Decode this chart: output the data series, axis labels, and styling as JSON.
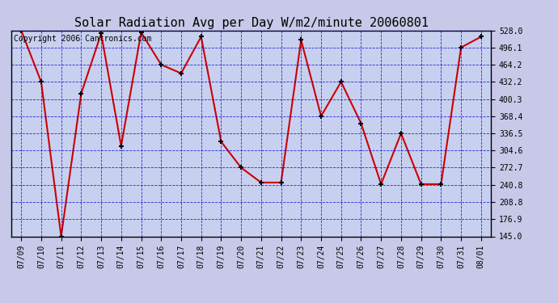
{
  "title": "Solar Radiation Avg per Day W/m2/minute 20060801",
  "copyright": "Copyright 2006 Cantronics.com",
  "dates": [
    "07/09",
    "07/10",
    "07/11",
    "07/12",
    "07/13",
    "07/14",
    "07/15",
    "07/16",
    "07/17",
    "07/18",
    "07/19",
    "07/20",
    "07/21",
    "07/22",
    "07/23",
    "07/24",
    "07/25",
    "07/26",
    "07/27",
    "07/28",
    "07/29",
    "07/30",
    "07/31",
    "08/01"
  ],
  "values": [
    528.0,
    432.2,
    145.0,
    410.0,
    522.0,
    313.0,
    524.0,
    464.2,
    448.0,
    516.0,
    321.0,
    272.7,
    245.0,
    245.0,
    510.0,
    368.4,
    432.2,
    355.0,
    242.0,
    336.5,
    242.0,
    242.0,
    496.1,
    516.0
  ],
  "yticks": [
    145.0,
    176.9,
    208.8,
    240.8,
    272.7,
    304.6,
    336.5,
    368.4,
    400.3,
    432.2,
    464.2,
    496.1,
    528.0
  ],
  "ymin": 145.0,
  "ymax": 528.0,
  "line_color": "#cc0000",
  "marker": "+",
  "marker_color": "black",
  "fig_bg_color": "#c8c8e8",
  "plot_bg_color": "#c8d0f0",
  "grid_color": "#0000cc",
  "title_fontsize": 11,
  "copyright_fontsize": 7,
  "tick_fontsize": 7,
  "ytick_fontsize": 7
}
